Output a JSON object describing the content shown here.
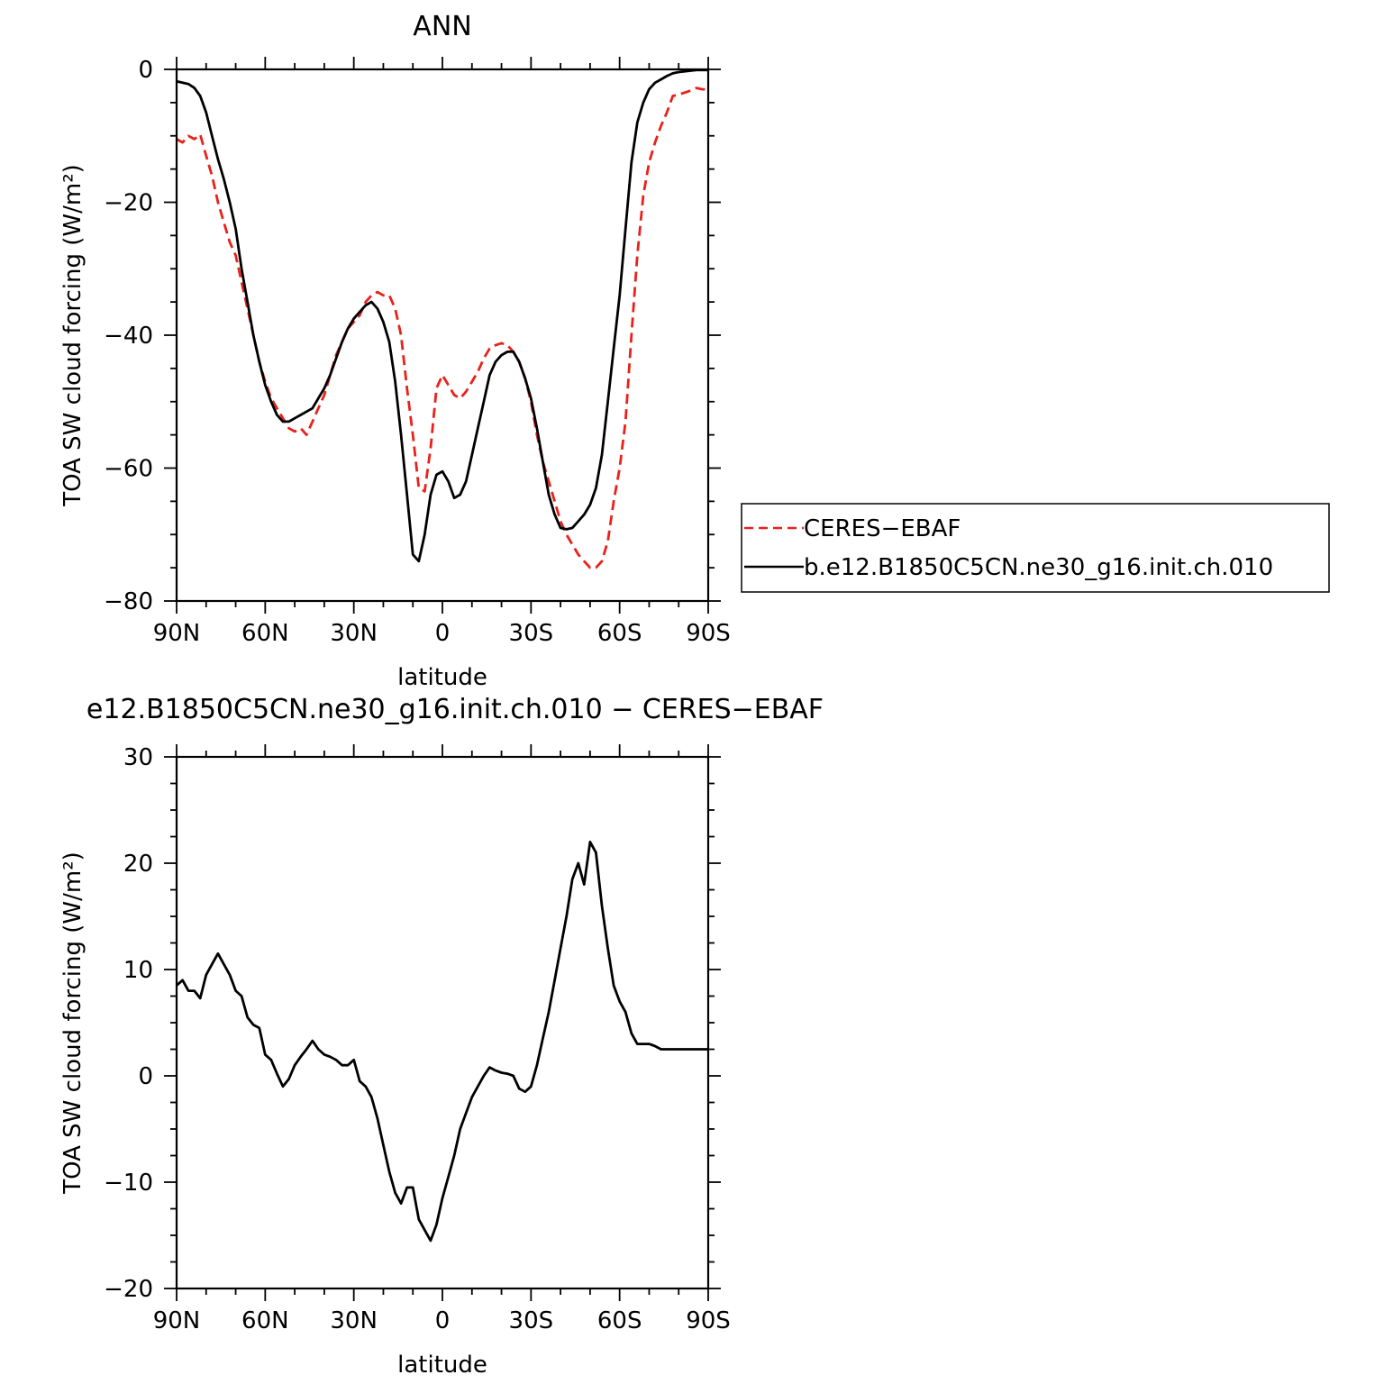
{
  "colors": {
    "ceres": "#e8221b",
    "model": "#000000",
    "axis": "#000000"
  },
  "legend": {
    "entries": [
      {
        "label": "CERES−EBAF",
        "color": "#e8221b",
        "dash": "dashed"
      },
      {
        "label": "b.e12.B1850C5CN.ne30_g16.init.ch.010",
        "color": "#000000",
        "dash": "solid"
      }
    ],
    "position": "right-of-top-panel"
  },
  "chart_data": [
    {
      "type": "line",
      "title": "ANN",
      "xlabel": "latitude",
      "ylabel": "TOA SW cloud forcing (W/m²)",
      "xlim": [
        90,
        -90
      ],
      "ylim": [
        -80,
        0
      ],
      "x_ticks": [
        {
          "value": 90,
          "label": "90N"
        },
        {
          "value": 60,
          "label": "60N"
        },
        {
          "value": 30,
          "label": "30N"
        },
        {
          "value": 0,
          "label": "0"
        },
        {
          "value": -30,
          "label": "30S"
        },
        {
          "value": -60,
          "label": "60S"
        },
        {
          "value": -90,
          "label": "90S"
        }
      ],
      "y_ticks": [
        {
          "value": 0,
          "label": "0"
        },
        {
          "value": -20,
          "label": "−20"
        },
        {
          "value": -40,
          "label": "−40"
        },
        {
          "value": -60,
          "label": "−60"
        },
        {
          "value": -80,
          "label": "−80"
        }
      ],
      "grid": false,
      "series": [
        {
          "name": "CERES−EBAF",
          "color": "#e8221b",
          "dash": "dashed",
          "x": [
            90,
            88,
            86,
            84,
            82,
            80,
            78,
            76,
            74,
            72,
            70,
            68,
            66,
            64,
            62,
            60,
            58,
            56,
            54,
            52,
            50,
            48,
            46,
            44,
            42,
            40,
            38,
            36,
            34,
            32,
            30,
            28,
            26,
            24,
            22,
            20,
            18,
            16,
            14,
            12,
            10,
            8,
            6,
            4,
            2,
            0,
            -2,
            -4,
            -6,
            -8,
            -10,
            -12,
            -14,
            -16,
            -18,
            -20,
            -22,
            -24,
            -26,
            -28,
            -30,
            -32,
            -34,
            -36,
            -38,
            -40,
            -42,
            -44,
            -46,
            -48,
            -50,
            -52,
            -54,
            -56,
            -58,
            -60,
            -62,
            -64,
            -66,
            -68,
            -70,
            -72,
            -74,
            -76,
            -78,
            -80,
            -82,
            -84,
            -86,
            -88,
            -90
          ],
          "y": [
            -10.5,
            -11,
            -10,
            -10.5,
            -9.8,
            -13,
            -16,
            -20,
            -23,
            -26,
            -28,
            -32,
            -36,
            -40,
            -44,
            -47,
            -49.5,
            -51,
            -52.5,
            -54,
            -54.5,
            -54,
            -55,
            -53,
            -51,
            -49,
            -46,
            -43,
            -41,
            -39,
            -38,
            -37,
            -35,
            -34,
            -33.5,
            -34,
            -34,
            -36,
            -40,
            -48,
            -55,
            -63,
            -63.5,
            -57,
            -48,
            -46,
            -47.5,
            -49,
            -49.5,
            -48.5,
            -47,
            -45.5,
            -43.5,
            -42,
            -41.5,
            -41.2,
            -41.5,
            -42.5,
            -44,
            -46.5,
            -50,
            -55,
            -59,
            -62,
            -65,
            -68,
            -70,
            -71.5,
            -73,
            -74,
            -75,
            -75,
            -74,
            -71,
            -65,
            -60,
            -53,
            -40,
            -28,
            -19,
            -14,
            -11,
            -8.5,
            -6.5,
            -4,
            -3.8,
            -3.5,
            -3.2,
            -2.8,
            -3,
            -3
          ]
        },
        {
          "name": "b.e12.B1850C5CN.ne30_g16.init.ch.010",
          "color": "#000000",
          "dash": "solid",
          "x": [
            90,
            88,
            86,
            84,
            82,
            80,
            78,
            76,
            74,
            72,
            70,
            68,
            66,
            64,
            62,
            60,
            58,
            56,
            54,
            52,
            50,
            48,
            46,
            44,
            42,
            40,
            38,
            36,
            34,
            32,
            30,
            28,
            26,
            24,
            22,
            20,
            18,
            16,
            14,
            12,
            10,
            8,
            6,
            4,
            2,
            0,
            -2,
            -4,
            -6,
            -8,
            -10,
            -12,
            -14,
            -16,
            -18,
            -20,
            -22,
            -24,
            -26,
            -28,
            -30,
            -32,
            -34,
            -36,
            -38,
            -40,
            -42,
            -44,
            -46,
            -48,
            -50,
            -52,
            -54,
            -56,
            -58,
            -60,
            -62,
            -64,
            -66,
            -68,
            -70,
            -72,
            -74,
            -76,
            -78,
            -80,
            -82,
            -84,
            -86,
            -88,
            -90
          ],
          "y": [
            -1.8,
            -2,
            -2.2,
            -2.8,
            -4,
            -6.5,
            -10,
            -13.5,
            -16.5,
            -20,
            -24,
            -30,
            -35,
            -40,
            -44,
            -47.5,
            -50,
            -52,
            -53,
            -53,
            -52.5,
            -52,
            -51.5,
            -51,
            -49.5,
            -48,
            -46,
            -43.5,
            -41,
            -39,
            -37.5,
            -36.5,
            -35.5,
            -35,
            -36,
            -38,
            -41,
            -47,
            -55,
            -64,
            -73,
            -74,
            -70,
            -64,
            -61,
            -60.5,
            -62,
            -64.5,
            -64,
            -62,
            -58,
            -54,
            -50,
            -46,
            -44,
            -43,
            -42.5,
            -42.5,
            -44,
            -46.5,
            -49.5,
            -54,
            -59,
            -64,
            -67,
            -69,
            -69.2,
            -69,
            -68,
            -67,
            -65.5,
            -63,
            -58,
            -50,
            -42,
            -34,
            -24,
            -14,
            -8,
            -5,
            -3,
            -2,
            -1.5,
            -1,
            -0.6,
            -0.4,
            -0.3,
            -0.2,
            -0.1,
            -0.1,
            -0.1
          ]
        }
      ]
    },
    {
      "type": "line",
      "title": "e12.B1850C5CN.ne30_g16.init.ch.010 − CERES−EBAF",
      "xlabel": "latitude",
      "ylabel": "TOA SW cloud forcing (W/m²)",
      "xlim": [
        90,
        -90
      ],
      "ylim": [
        -20,
        30
      ],
      "x_ticks": [
        {
          "value": 90,
          "label": "90N"
        },
        {
          "value": 60,
          "label": "60N"
        },
        {
          "value": 30,
          "label": "30N"
        },
        {
          "value": 0,
          "label": "0"
        },
        {
          "value": -30,
          "label": "30S"
        },
        {
          "value": -60,
          "label": "60S"
        },
        {
          "value": -90,
          "label": "90S"
        }
      ],
      "y_ticks": [
        {
          "value": 30,
          "label": "30"
        },
        {
          "value": 20,
          "label": "20"
        },
        {
          "value": 10,
          "label": "10"
        },
        {
          "value": 0,
          "label": "0"
        },
        {
          "value": -10,
          "label": "−10"
        },
        {
          "value": -20,
          "label": "−20"
        }
      ],
      "grid": false,
      "series": [
        {
          "color": "#000000",
          "dash": "solid",
          "x": [
            90,
            88,
            86,
            84,
            82,
            80,
            78,
            76,
            74,
            72,
            70,
            68,
            66,
            64,
            62,
            60,
            58,
            56,
            54,
            52,
            50,
            48,
            46,
            44,
            42,
            40,
            38,
            36,
            34,
            32,
            30,
            28,
            26,
            24,
            22,
            20,
            18,
            16,
            14,
            12,
            10,
            8,
            6,
            4,
            2,
            0,
            -2,
            -4,
            -6,
            -8,
            -10,
            -12,
            -14,
            -16,
            -18,
            -20,
            -22,
            -24,
            -26,
            -28,
            -30,
            -32,
            -34,
            -36,
            -38,
            -40,
            -42,
            -44,
            -46,
            -48,
            -50,
            -52,
            -54,
            -56,
            -58,
            -60,
            -62,
            -64,
            -66,
            -68,
            -70,
            -72,
            -74,
            -76,
            -78,
            -80,
            -82,
            -84,
            -86,
            -88,
            -90
          ],
          "y": [
            8.5,
            9,
            8,
            8,
            7.3,
            9.5,
            10.5,
            11.5,
            10.5,
            9.5,
            8,
            7.5,
            5.5,
            4.8,
            4.5,
            2,
            1.5,
            0.2,
            -1,
            -0.3,
            1,
            1.8,
            2.5,
            3.3,
            2.5,
            2,
            1.8,
            1.5,
            1,
            1,
            1.5,
            -0.5,
            -1,
            -2,
            -4,
            -6.5,
            -9,
            -11,
            -12,
            -10.5,
            -10.5,
            -13.5,
            -14.5,
            -15.5,
            -14,
            -11.5,
            -9.5,
            -7.5,
            -5,
            -3.5,
            -2,
            -1,
            0,
            0.8,
            0.5,
            0.3,
            0.2,
            0,
            -1.2,
            -1.5,
            -1,
            1,
            3.5,
            6,
            9,
            12,
            15,
            18.5,
            20,
            18,
            22,
            21,
            16,
            12,
            8.5,
            7,
            6,
            4,
            3,
            3,
            3,
            2.8,
            2.5,
            2.5,
            2.5,
            2.5,
            2.5,
            2.5,
            2.5,
            2.5,
            2.5
          ]
        }
      ]
    }
  ]
}
